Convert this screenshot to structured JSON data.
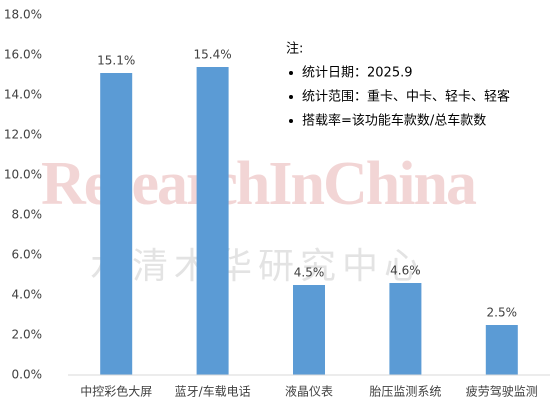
{
  "chart_data": {
    "type": "bar",
    "categories": [
      "中控彩色大屏",
      "蓝牙/车载电话",
      "液晶仪表",
      "胎压监测系统",
      "疲劳驾驶监测"
    ],
    "values": [
      15.1,
      15.4,
      4.5,
      4.6,
      2.5
    ],
    "value_labels": [
      "15.1%",
      "15.4%",
      "4.5%",
      "4.6%",
      "2.5%"
    ],
    "color": "#5b9bd5",
    "ylim": [
      0,
      18
    ],
    "yticks": [
      {
        "value": 0,
        "label": "0.0%"
      },
      {
        "value": 2,
        "label": "2.0%"
      },
      {
        "value": 4,
        "label": "4.0%"
      },
      {
        "value": 6,
        "label": "6.0%"
      },
      {
        "value": 8,
        "label": "8.0%"
      },
      {
        "value": 10,
        "label": "10.0%"
      },
      {
        "value": 12,
        "label": "12.0%"
      },
      {
        "value": 14,
        "label": "14.0%"
      },
      {
        "value": 16,
        "label": "16.0%"
      },
      {
        "value": 18,
        "label": "18.0%"
      }
    ],
    "grid": false,
    "note_title": "注:",
    "notes": [
      "统计日期：2025.9",
      "统计范围：重卡、中卡、轻卡、轻客",
      "搭载率=该功能车款数/总车款数"
    ],
    "watermark": "ResearchInChina",
    "watermark_cn": "水清木华研究中心"
  }
}
